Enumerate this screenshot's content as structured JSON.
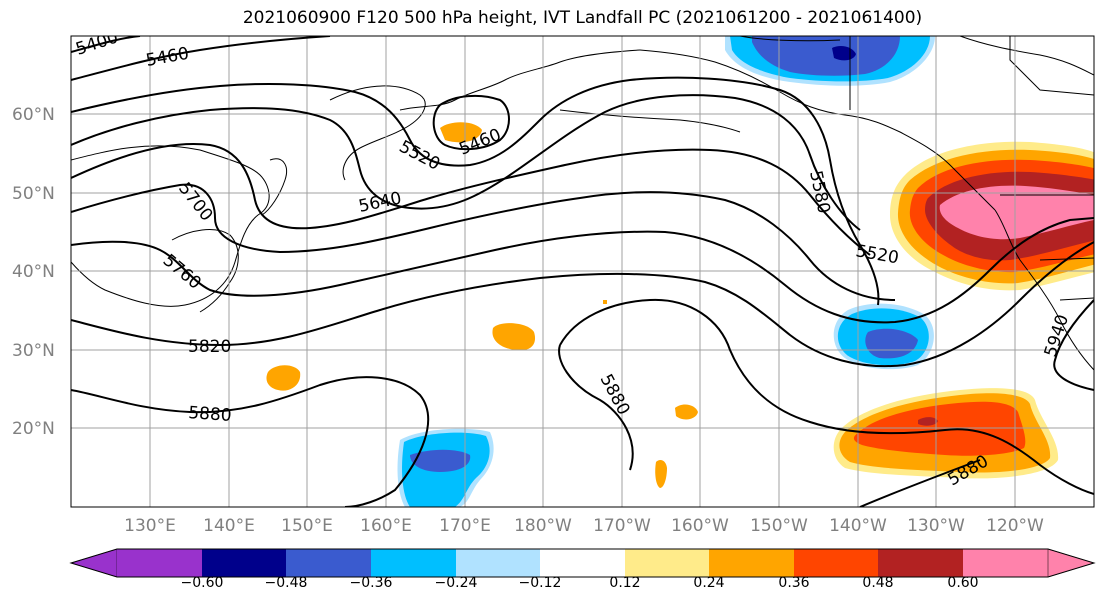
{
  "title": "2021060900 F120 500 hPa height, IVT Landfall PC (2021061200 - 2021061400)",
  "lat_labels": [
    "20°N",
    "30°N",
    "40°N",
    "50°N",
    "60°N"
  ],
  "lon_labels": [
    "130°E",
    "140°E",
    "150°E",
    "160°E",
    "170°E",
    "180°W",
    "170°W",
    "160°W",
    "150°W",
    "140°W",
    "130°W",
    "120°W"
  ],
  "contour_labels": [
    "5400",
    "5460",
    "5700",
    "5760",
    "5820",
    "5880",
    "5520",
    "5460",
    "5640",
    "5580",
    "5520",
    "5880",
    "5940",
    "5880"
  ],
  "colorbar": {
    "colors": [
      "#9932cc",
      "#00008b",
      "#3a5bcf",
      "#00bfff",
      "#b0e2ff",
      "#ffffff",
      "#ffeb8a",
      "#ffa500",
      "#ff4500",
      "#b22222",
      "#ff82ab"
    ],
    "tick_labels": [
      "−0.60",
      "−0.48",
      "−0.36",
      "−0.24",
      "−0.12",
      "0.12",
      "0.24",
      "0.36",
      "0.48",
      "0.60"
    ]
  }
}
